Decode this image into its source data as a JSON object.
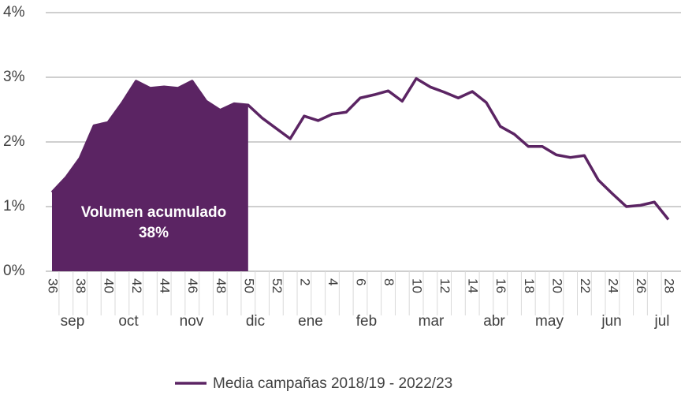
{
  "chart_data": {
    "type": "line",
    "categories": [
      "36",
      null,
      "38",
      null,
      "40",
      null,
      "42",
      null,
      "44",
      null,
      "46",
      null,
      "48",
      null,
      "50",
      null,
      "52",
      null,
      "2",
      null,
      "4",
      null,
      "6",
      null,
      "8",
      null,
      "10",
      null,
      "12",
      null,
      "14",
      null,
      "16",
      null,
      "18",
      null,
      "20",
      null,
      "22",
      null,
      "24",
      null,
      "26",
      null,
      "28"
    ],
    "months": [
      "sep",
      "oct",
      "nov",
      "dic",
      "ene",
      "feb",
      "mar",
      "abr",
      "may",
      "jun",
      "jul"
    ],
    "series": [
      {
        "name": "Media campañas 2018/19 - 2022/23",
        "color": "#5b2463",
        "values": [
          1.22,
          1.45,
          1.75,
          2.25,
          2.3,
          2.6,
          2.94,
          2.83,
          2.85,
          2.83,
          2.94,
          2.63,
          2.49,
          2.59,
          2.57,
          2.37,
          2.21,
          2.05,
          2.4,
          2.33,
          2.43,
          2.46,
          2.68,
          2.73,
          2.79,
          2.63,
          2.98,
          2.85,
          2.77,
          2.68,
          2.78,
          2.61,
          2.24,
          2.12,
          1.93,
          1.93,
          1.8,
          1.76,
          1.79,
          1.41,
          1.2,
          1.0,
          1.02,
          1.07,
          0.8
        ]
      }
    ],
    "annotations": [
      "Volumen acumulado",
      "38%"
    ],
    "ylim": [
      0,
      4
    ],
    "yticks": [
      {
        "value": 0,
        "label": "0%"
      },
      {
        "value": 1,
        "label": "1%"
      },
      {
        "value": 2,
        "label": "2%"
      },
      {
        "value": 3,
        "label": "3%"
      },
      {
        "value": 4,
        "label": "4%"
      }
    ],
    "grid": true
  }
}
